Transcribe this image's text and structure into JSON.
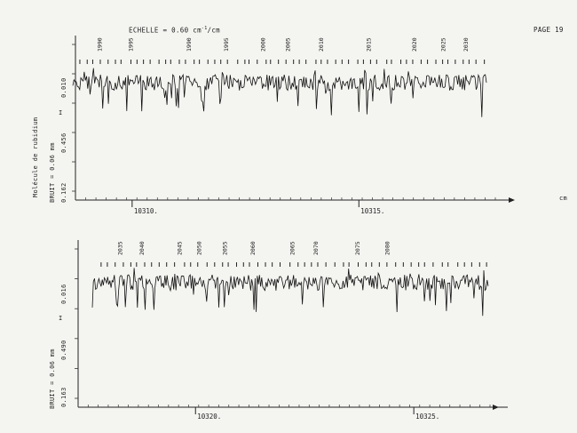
{
  "header": {
    "echelle_label": "ECHELLE =",
    "echelle_value": "0.60",
    "echelle_unit": "cm",
    "echelle_exp": "-1",
    "echelle_suffix": "/cm",
    "page_number": "PAGE 19"
  },
  "panels": [
    {
      "side_molecule": "Molécule de rubidium",
      "side_bruit": "BRUIT = 0.06 mm",
      "side_i": "I",
      "side_values": [
        "0.010",
        "0.456",
        "0.162"
      ],
      "axis_labels": [
        {
          "text": "10310.",
          "pos": 0.135
        },
        {
          "text": "10315.",
          "pos": 0.675
        }
      ],
      "unit_label": "cm",
      "line_numbers": [
        {
          "text": "1990",
          "pos": 0.07
        },
        {
          "text": "1995",
          "pos": 0.145
        },
        {
          "text": "1990",
          "pos": 0.285
        },
        {
          "text": "1995",
          "pos": 0.375
        },
        {
          "text": "2000",
          "pos": 0.465
        },
        {
          "text": "2005",
          "pos": 0.525
        },
        {
          "text": "2010",
          "pos": 0.605
        },
        {
          "text": "2015",
          "pos": 0.72
        },
        {
          "text": "2020",
          "pos": 0.83
        },
        {
          "text": "2025",
          "pos": 0.9
        },
        {
          "text": "2030",
          "pos": 0.955
        }
      ],
      "ticks": 58,
      "seed": 7
    },
    {
      "side_molecule": "",
      "side_bruit": "BRUIT = 0.06 mm",
      "side_i": "I",
      "side_values": [
        "0.016",
        "0.490",
        "0.163"
      ],
      "axis_labels": [
        {
          "text": "10320.",
          "pos": 0.285
        },
        {
          "text": "10325.",
          "pos": 0.815
        }
      ],
      "unit_label": "",
      "line_numbers": [
        {
          "text": "2035",
          "pos": 0.075
        },
        {
          "text": "2040",
          "pos": 0.13
        },
        {
          "text": "2045",
          "pos": 0.225
        },
        {
          "text": "2050",
          "pos": 0.275
        },
        {
          "text": "2055",
          "pos": 0.34
        },
        {
          "text": "2060",
          "pos": 0.41
        },
        {
          "text": "2065",
          "pos": 0.51
        },
        {
          "text": "2070",
          "pos": 0.57
        },
        {
          "text": "2075",
          "pos": 0.675
        },
        {
          "text": "2080",
          "pos": 0.75
        }
      ],
      "ticks": 52,
      "seed": 19
    }
  ]
}
